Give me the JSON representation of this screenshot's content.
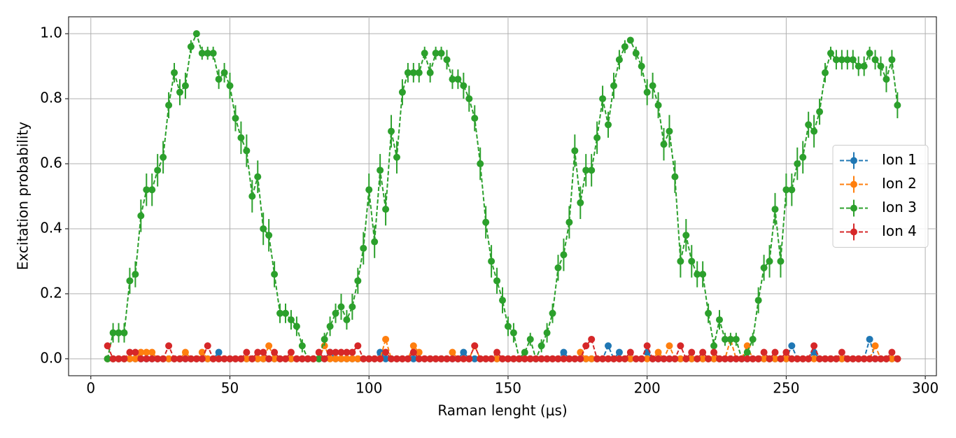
{
  "chart_data": {
    "type": "errorbar_line",
    "x_label": "Raman lenght (μs)",
    "y_label": "Excitation probability",
    "xlim": [
      -8,
      304
    ],
    "ylim": [
      -0.052,
      1.052
    ],
    "xticks": [
      0,
      50,
      100,
      150,
      200,
      250,
      300
    ],
    "yticks": [
      {
        "value": 0,
        "label": "0.0"
      },
      0.2,
      0.4,
      0.6,
      0.8,
      {
        "value": 1,
        "label": "1.0"
      }
    ],
    "grid": true,
    "legend": "center right",
    "x": [
      6,
      8,
      10,
      12,
      14,
      16,
      18,
      20,
      22,
      24,
      26,
      28,
      30,
      32,
      34,
      36,
      38,
      40,
      42,
      44,
      46,
      48,
      50,
      52,
      54,
      56,
      58,
      60,
      62,
      64,
      66,
      68,
      70,
      72,
      74,
      76,
      78,
      80,
      82,
      84,
      86,
      88,
      90,
      92,
      94,
      96,
      98,
      100,
      102,
      104,
      106,
      108,
      110,
      112,
      114,
      116,
      118,
      120,
      122,
      124,
      126,
      128,
      130,
      132,
      134,
      136,
      138,
      140,
      142,
      144,
      146,
      148,
      150,
      152,
      154,
      156,
      158,
      160,
      162,
      164,
      166,
      168,
      170,
      172,
      174,
      176,
      178,
      180,
      182,
      184,
      186,
      188,
      190,
      192,
      194,
      196,
      198,
      200,
      202,
      204,
      206,
      208,
      210,
      212,
      214,
      216,
      218,
      220,
      222,
      224,
      226,
      228,
      230,
      232,
      234,
      236,
      238,
      240,
      242,
      244,
      246,
      248,
      250,
      252,
      254,
      256,
      258,
      260,
      262,
      264,
      266,
      268,
      270,
      272,
      274,
      276,
      278,
      280,
      282,
      284,
      286,
      288,
      290
    ],
    "series": [
      {
        "name": "Ion 1",
        "color": "#1f77b4",
        "values": [
          0,
          0,
          0,
          0,
          0,
          0,
          0,
          0,
          0,
          0,
          0,
          0,
          0,
          0,
          0,
          0,
          0,
          0,
          0,
          0,
          0.02,
          0,
          0,
          0,
          0,
          0,
          0,
          0,
          0,
          0,
          0,
          0,
          0,
          0,
          0,
          0,
          0,
          0,
          0,
          0,
          0.02,
          0,
          0,
          0,
          0,
          0,
          0,
          0,
          0,
          0.02,
          0,
          0,
          0,
          0,
          0,
          0,
          0,
          0,
          0,
          0,
          0,
          0,
          0,
          0,
          0.02,
          0,
          0,
          0,
          0,
          0,
          0,
          0,
          0,
          0,
          0,
          0,
          0,
          0,
          0,
          0,
          0,
          0,
          0.02,
          0,
          0,
          0,
          0,
          0,
          0,
          0,
          0.04,
          0,
          0.02,
          0,
          0,
          0,
          0,
          0.02,
          0,
          0,
          0,
          0,
          0,
          0,
          0,
          0,
          0,
          0,
          0,
          0,
          0,
          0,
          0,
          0,
          0,
          0,
          0,
          0,
          0,
          0,
          0,
          0,
          0,
          0.04,
          0,
          0,
          0,
          0.02,
          0,
          0,
          0,
          0,
          0,
          0,
          0,
          0,
          0,
          0.06,
          0,
          0,
          0,
          0,
          0
        ]
      },
      {
        "name": "Ion 2",
        "color": "#ff7f0e",
        "values": [
          0,
          0,
          0,
          0,
          0,
          0,
          0.02,
          0.02,
          0.02,
          0,
          0,
          0,
          0,
          0,
          0.02,
          0,
          0,
          0.02,
          0,
          0,
          0,
          0,
          0,
          0,
          0,
          0,
          0,
          0,
          0,
          0.04,
          0,
          0,
          0,
          0,
          0,
          0,
          0,
          0,
          0,
          0.04,
          0,
          0,
          0,
          0,
          0,
          0,
          0,
          0,
          0,
          0,
          0.06,
          0,
          0,
          0,
          0,
          0.04,
          0.02,
          0,
          0,
          0,
          0,
          0,
          0.02,
          0,
          0,
          0,
          0.04,
          0,
          0,
          0,
          0,
          0,
          0,
          0,
          0,
          0,
          0,
          0,
          0,
          0,
          0,
          0,
          0,
          0,
          0,
          0.02,
          0,
          0,
          0,
          0,
          0,
          0,
          0,
          0,
          0,
          0,
          0,
          0,
          0,
          0.02,
          0,
          0.04,
          0,
          0,
          0,
          0,
          0,
          0,
          0,
          0,
          0,
          0,
          0.06,
          0,
          0,
          0.04,
          0,
          0,
          0,
          0,
          0,
          0,
          0,
          0,
          0,
          0,
          0,
          0,
          0,
          0,
          0,
          0,
          0,
          0,
          0,
          0,
          0,
          0,
          0.04,
          0,
          0,
          0,
          0
        ]
      },
      {
        "name": "Ion 3",
        "color": "#2ca02c",
        "values": [
          0,
          0.08,
          0.08,
          0.08,
          0.24,
          0.26,
          0.44,
          0.52,
          0.52,
          0.58,
          0.62,
          0.78,
          0.88,
          0.82,
          0.84,
          0.96,
          1.0,
          0.94,
          0.94,
          0.94,
          0.86,
          0.88,
          0.84,
          0.74,
          0.68,
          0.64,
          0.5,
          0.56,
          0.4,
          0.38,
          0.26,
          0.14,
          0.14,
          0.12,
          0.1,
          0.04,
          0,
          0,
          0,
          0.06,
          0.1,
          0.14,
          0.16,
          0.12,
          0.16,
          0.24,
          0.34,
          0.52,
          0.36,
          0.58,
          0.46,
          0.7,
          0.62,
          0.82,
          0.88,
          0.88,
          0.88,
          0.94,
          0.88,
          0.94,
          0.94,
          0.92,
          0.86,
          0.86,
          0.84,
          0.8,
          0.74,
          0.6,
          0.42,
          0.3,
          0.24,
          0.18,
          0.1,
          0.08,
          0,
          0.02,
          0.06,
          0,
          0.04,
          0.08,
          0.14,
          0.28,
          0.32,
          0.42,
          0.64,
          0.48,
          0.58,
          0.58,
          0.68,
          0.8,
          0.72,
          0.84,
          0.92,
          0.96,
          0.98,
          0.94,
          0.9,
          0.82,
          0.84,
          0.78,
          0.66,
          0.7,
          0.56,
          0.3,
          0.38,
          0.3,
          0.26,
          0.26,
          0.14,
          0.04,
          0.12,
          0.06,
          0.06,
          0.06,
          0,
          0.02,
          0.06,
          0.18,
          0.28,
          0.3,
          0.46,
          0.3,
          0.52,
          0.52,
          0.6,
          0.62,
          0.72,
          0.7,
          0.76,
          0.88,
          0.94,
          0.92,
          0.92,
          0.92,
          0.92,
          0.9,
          0.9,
          0.94,
          0.92,
          0.9,
          0.86,
          0.92,
          0.78
        ],
        "errors": [
          0,
          0.03,
          0.03,
          0.03,
          0.04,
          0.04,
          0.05,
          0.05,
          0.05,
          0.05,
          0.05,
          0.04,
          0.03,
          0.04,
          0.04,
          0.02,
          0,
          0.02,
          0.02,
          0.02,
          0.03,
          0.03,
          0.04,
          0.04,
          0.05,
          0.05,
          0.05,
          0.05,
          0.05,
          0.05,
          0.04,
          0.03,
          0.03,
          0.03,
          0.03,
          0.02,
          0,
          0,
          0,
          0.02,
          0.03,
          0.03,
          0.04,
          0.03,
          0.04,
          0.04,
          0.05,
          0.05,
          0.05,
          0.05,
          0.05,
          0.05,
          0.05,
          0.04,
          0.03,
          0.03,
          0.03,
          0.02,
          0.03,
          0.02,
          0.02,
          0.03,
          0.03,
          0.03,
          0.04,
          0.04,
          0.04,
          0.05,
          0.05,
          0.05,
          0.04,
          0.04,
          0.03,
          0.03,
          0,
          0.01,
          0.02,
          0,
          0.02,
          0.03,
          0.03,
          0.04,
          0.05,
          0.05,
          0.05,
          0.05,
          0.05,
          0.05,
          0.05,
          0.04,
          0.04,
          0.04,
          0.03,
          0.02,
          0.01,
          0.02,
          0.03,
          0.04,
          0.04,
          0.04,
          0.05,
          0.05,
          0.05,
          0.05,
          0.05,
          0.05,
          0.04,
          0.04,
          0.03,
          0.02,
          0.03,
          0.02,
          0.02,
          0.02,
          0,
          0.01,
          0.02,
          0.04,
          0.04,
          0.05,
          0.05,
          0.05,
          0.05,
          0.05,
          0.05,
          0.05,
          0.04,
          0.05,
          0.04,
          0.03,
          0.02,
          0.03,
          0.03,
          0.03,
          0.03,
          0.03,
          0.03,
          0.02,
          0.03,
          0.03,
          0.04,
          0.03,
          0.04
        ]
      },
      {
        "name": "Ion 4",
        "color": "#d62728",
        "values": [
          0.04,
          0,
          0,
          0,
          0.02,
          0.02,
          0,
          0,
          0,
          0,
          0,
          0.04,
          0,
          0,
          0,
          0,
          0,
          0,
          0.04,
          0,
          0,
          0,
          0,
          0,
          0,
          0.02,
          0,
          0.02,
          0.02,
          0,
          0.02,
          0,
          0,
          0.02,
          0,
          0,
          0,
          0,
          0.02,
          0,
          0.02,
          0.02,
          0.02,
          0.02,
          0.02,
          0.04,
          0,
          0,
          0,
          0,
          0.02,
          0,
          0,
          0,
          0,
          0.02,
          0,
          0,
          0,
          0,
          0,
          0,
          0,
          0,
          0,
          0,
          0.04,
          0,
          0,
          0,
          0.02,
          0,
          0,
          0,
          0,
          0,
          0,
          0,
          0,
          0,
          0,
          0,
          0,
          0,
          0,
          0,
          0.04,
          0.06,
          0,
          0,
          0,
          0,
          0,
          0,
          0.02,
          0,
          0,
          0.04,
          0,
          0,
          0,
          0,
          0,
          0.04,
          0,
          0.02,
          0,
          0.02,
          0,
          0.02,
          0,
          0,
          0,
          0,
          0,
          0,
          0,
          0,
          0.02,
          0,
          0.02,
          0,
          0.02,
          0,
          0,
          0,
          0,
          0.04,
          0,
          0,
          0,
          0,
          0.02,
          0,
          0,
          0,
          0,
          0,
          0,
          0,
          0,
          0.02,
          0
        ]
      }
    ]
  }
}
